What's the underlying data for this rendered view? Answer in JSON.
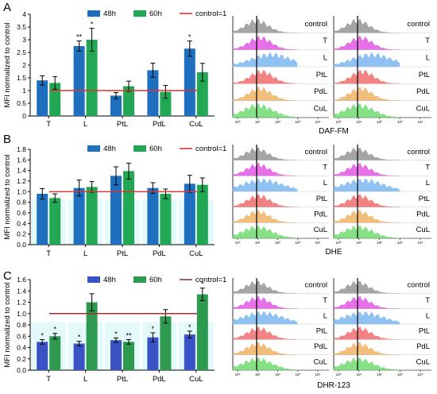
{
  "panels": [
    {
      "letter": "A",
      "flow_label": "DAF-FM",
      "chart_data": {
        "type": "bar",
        "title": "",
        "xlabel": "",
        "ylabel": "MFI normalized to control",
        "ylim": [
          0,
          4
        ],
        "yticks": [
          "0",
          "0.5",
          "1",
          "1.5",
          "2",
          "2.5",
          "3",
          "3.5",
          "4"
        ],
        "categories": [
          "T",
          "L",
          "PtL",
          "PdL",
          "CuL"
        ],
        "series": [
          {
            "name": "48h",
            "color": "#1f6fbf",
            "values": [
              1.4,
              2.75,
              0.8,
              1.8,
              2.65
            ],
            "errors": [
              0.18,
              0.2,
              0.12,
              0.28,
              0.3
            ],
            "sig": [
              "",
              "**",
              "",
              "",
              "*"
            ]
          },
          {
            "name": "60h",
            "color": "#22a755",
            "values": [
              1.3,
              3.0,
              1.17,
              0.95,
              1.72
            ],
            "errors": [
              0.25,
              0.45,
              0.2,
              0.25,
              0.35
            ],
            "sig": [
              "",
              "*",
              "",
              "",
              ""
            ]
          }
        ],
        "reference_line": {
          "name": "control=1",
          "value": 1,
          "color": "#e03030"
        },
        "legend": "top"
      }
    },
    {
      "letter": "B",
      "flow_label": "DHE",
      "chart_data": {
        "type": "bar",
        "title": "",
        "xlabel": "",
        "ylabel": "MFI normalized to control",
        "ylim": [
          0,
          1.8
        ],
        "yticks": [
          "0.0",
          "0.2",
          "0.4",
          "0.6",
          "0.8",
          "1.0",
          "1.2",
          "1.4",
          "1.6",
          "1.8"
        ],
        "categories": [
          "T",
          "L",
          "PtL",
          "PdL",
          "CuL"
        ],
        "series": [
          {
            "name": "48h",
            "color": "#1f6fbf",
            "values": [
              0.96,
              1.07,
              1.3,
              1.07,
              1.15
            ],
            "errors": [
              0.1,
              0.15,
              0.17,
              0.1,
              0.16
            ],
            "sig": [
              "",
              "",
              "",
              "",
              ""
            ]
          },
          {
            "name": "60h",
            "color": "#22a755",
            "values": [
              0.88,
              1.09,
              1.39,
              0.96,
              1.13
            ],
            "errors": [
              0.08,
              0.1,
              0.15,
              0.09,
              0.13
            ],
            "sig": [
              "",
              "",
              "",
              "",
              ""
            ]
          }
        ],
        "reference_line": {
          "name": "control=1",
          "value": 1,
          "color": "#e03030"
        },
        "legend": "top"
      }
    },
    {
      "letter": "C",
      "flow_label": "DHR-123",
      "chart_data": {
        "type": "bar",
        "title": "",
        "xlabel": "",
        "ylabel": "MFI normalized to control",
        "ylim": [
          0,
          1.6
        ],
        "yticks": [
          "0.0",
          "0.2",
          "0.4",
          "0.6",
          "0.8",
          "1.0",
          "1.2",
          "1.4",
          "1.6"
        ],
        "categories": [
          "T",
          "L",
          "PtL",
          "PdL",
          "CuL"
        ],
        "series": [
          {
            "name": "48h",
            "color": "#3a52c4",
            "values": [
              0.5,
              0.47,
              0.53,
              0.58,
              0.63
            ],
            "errors": [
              0.04,
              0.04,
              0.04,
              0.08,
              0.06
            ],
            "sig": [
              "*",
              "*",
              "*",
              "*",
              "*"
            ]
          },
          {
            "name": "60h",
            "color": "#2e9a50",
            "values": [
              0.6,
              1.2,
              0.5,
              0.95,
              1.34
            ],
            "errors": [
              0.05,
              0.15,
              0.04,
              0.12,
              0.11
            ],
            "sig": [
              "*",
              "",
              "**",
              "",
              "*"
            ]
          }
        ],
        "reference_line": {
          "name": "control=1",
          "value": 1,
          "color": "#a03030"
        },
        "legend": "top"
      }
    }
  ],
  "histograms": {
    "rows": [
      "control",
      "T",
      "L",
      "PtL",
      "PdL",
      "CuL"
    ],
    "colors": [
      "#888888",
      "#e040e0",
      "#6aaef0",
      "#f05a5a",
      "#f0a850",
      "#5ed85e"
    ],
    "axis_ticks": [
      "10⁰",
      "10¹",
      "10²",
      "10³",
      "10⁴"
    ]
  }
}
